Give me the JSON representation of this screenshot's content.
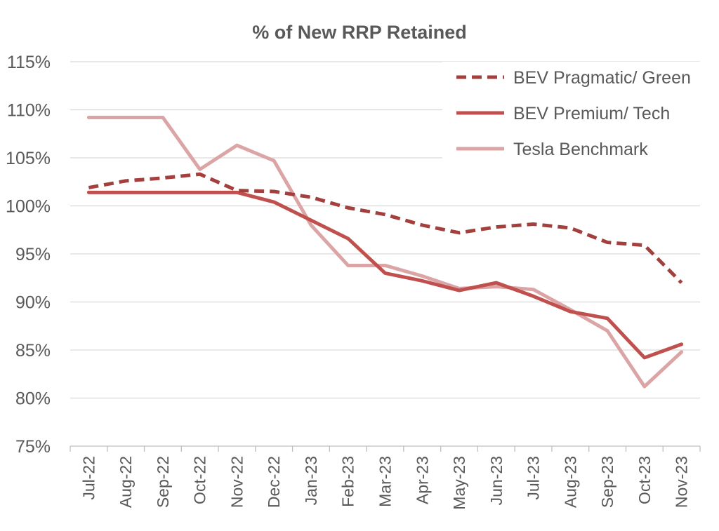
{
  "chart_data": {
    "type": "line",
    "title": "% of New RRP Retained",
    "xlabel": "",
    "ylabel": "",
    "ylim": [
      75,
      115
    ],
    "y_ticks": [
      "75%",
      "80%",
      "85%",
      "90%",
      "95%",
      "100%",
      "105%",
      "110%",
      "115%"
    ],
    "y_tick_values": [
      75,
      80,
      85,
      90,
      95,
      100,
      105,
      110,
      115
    ],
    "grid": true,
    "legend_position": "top-right",
    "categories": [
      "Jul-22",
      "Aug-22",
      "Sep-22",
      "Oct-22",
      "Nov-22",
      "Dec-22",
      "Jan-23",
      "Feb-23",
      "Mar-23",
      "Apr-23",
      "May-23",
      "Jun-23",
      "Jul-23",
      "Aug-23",
      "Sep-23",
      "Oct-23",
      "Nov-23"
    ],
    "series": [
      {
        "name": "BEV Pragmatic/ Green",
        "color": "#a33f3d",
        "dashed": true,
        "values": [
          101.9,
          102.6,
          102.9,
          103.3,
          101.6,
          101.5,
          100.9,
          99.8,
          99.1,
          98.0,
          97.2,
          97.8,
          98.1,
          97.7,
          96.2,
          95.9,
          92.0
        ]
      },
      {
        "name": "BEV Premium/ Tech",
        "color": "#c0504d",
        "dashed": false,
        "values": [
          101.4,
          101.4,
          101.4,
          101.4,
          101.4,
          100.4,
          98.5,
          96.6,
          93.0,
          92.2,
          91.2,
          92.0,
          90.6,
          89.0,
          88.3,
          84.2,
          85.6
        ]
      },
      {
        "name": "Tesla Benchmark",
        "color": "#dba5a5",
        "dashed": false,
        "values": [
          109.2,
          109.2,
          109.2,
          103.8,
          106.3,
          104.7,
          98.0,
          93.8,
          93.8,
          92.7,
          91.4,
          91.6,
          91.3,
          89.2,
          87.0,
          81.2,
          84.8
        ]
      }
    ]
  }
}
